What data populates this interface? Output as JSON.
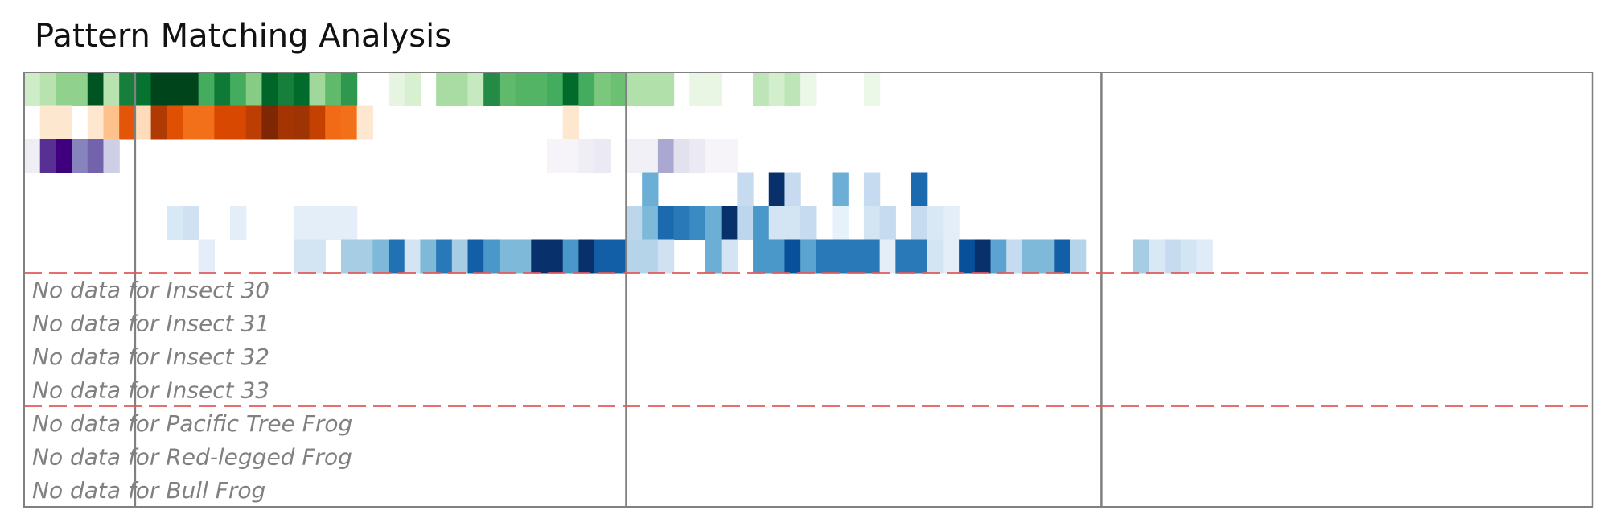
{
  "chart_data": {
    "type": "heatmap",
    "title": "Pattern Matching Analysis",
    "grid": false,
    "x": {
      "min": 0,
      "max": 99,
      "bins": 99
    },
    "colormaps": [
      "Greens",
      "Oranges",
      "Purples",
      "Blues"
    ],
    "section_markers": [
      7,
      38,
      68,
      99
    ],
    "group_separators": [
      6,
      10
    ],
    "rows": [
      {
        "cmap": "Greens",
        "cells": [
          [
            0,
            0.22
          ],
          [
            1,
            0.3
          ],
          [
            2,
            0.42
          ],
          [
            3,
            0.42
          ],
          [
            4,
            0.95
          ],
          [
            5,
            0.3
          ],
          [
            6,
            0.8
          ],
          [
            7,
            0.85
          ],
          [
            8,
            1.0
          ],
          [
            9,
            1.0
          ],
          [
            10,
            1.0
          ],
          [
            11,
            0.62
          ],
          [
            12,
            0.82
          ],
          [
            13,
            0.62
          ],
          [
            14,
            0.45
          ],
          [
            15,
            0.9
          ],
          [
            16,
            0.8
          ],
          [
            17,
            0.88
          ],
          [
            18,
            0.38
          ],
          [
            19,
            0.55
          ],
          [
            20,
            0.7
          ],
          [
            23,
            0.12
          ],
          [
            24,
            0.18
          ],
          [
            26,
            0.35
          ],
          [
            27,
            0.35
          ],
          [
            28,
            0.25
          ],
          [
            29,
            0.75
          ],
          [
            30,
            0.55
          ],
          [
            31,
            0.58
          ],
          [
            32,
            0.58
          ],
          [
            33,
            0.62
          ],
          [
            34,
            0.88
          ],
          [
            35,
            0.62
          ],
          [
            36,
            0.48
          ],
          [
            37,
            0.52
          ],
          [
            38,
            0.32
          ],
          [
            39,
            0.32
          ],
          [
            40,
            0.32
          ],
          [
            42,
            0.1
          ],
          [
            43,
            0.1
          ],
          [
            46,
            0.28
          ],
          [
            47,
            0.2
          ],
          [
            48,
            0.28
          ],
          [
            49,
            0.08
          ],
          [
            53,
            0.08
          ]
        ]
      },
      {
        "cmap": "Oranges",
        "cells": [
          [
            1,
            0.12
          ],
          [
            2,
            0.12
          ],
          [
            4,
            0.12
          ],
          [
            5,
            0.3
          ],
          [
            6,
            0.7
          ],
          [
            7,
            0.18
          ],
          [
            8,
            0.85
          ],
          [
            9,
            0.72
          ],
          [
            10,
            0.6
          ],
          [
            11,
            0.6
          ],
          [
            12,
            0.75
          ],
          [
            13,
            0.75
          ],
          [
            14,
            0.82
          ],
          [
            15,
            1.0
          ],
          [
            16,
            0.88
          ],
          [
            17,
            0.9
          ],
          [
            18,
            0.8
          ],
          [
            19,
            0.62
          ],
          [
            20,
            0.6
          ],
          [
            21,
            0.12
          ],
          [
            34,
            0.12
          ]
        ]
      },
      {
        "cmap": "Purples",
        "cells": [
          [
            0,
            0.12
          ],
          [
            1,
            0.85
          ],
          [
            2,
            1.0
          ],
          [
            3,
            0.6
          ],
          [
            4,
            0.7
          ],
          [
            5,
            0.3
          ],
          [
            33,
            0.06
          ],
          [
            34,
            0.06
          ],
          [
            35,
            0.12
          ],
          [
            36,
            0.15
          ],
          [
            38,
            0.1
          ],
          [
            39,
            0.1
          ],
          [
            40,
            0.45
          ],
          [
            41,
            0.2
          ],
          [
            42,
            0.15
          ],
          [
            43,
            0.06
          ],
          [
            44,
            0.06
          ]
        ]
      },
      {
        "cmap": "Blues",
        "cells": [
          [
            39,
            0.5
          ],
          [
            45,
            0.25
          ],
          [
            47,
            1.0
          ],
          [
            48,
            0.25
          ],
          [
            51,
            0.5
          ],
          [
            53,
            0.25
          ],
          [
            56,
            0.78
          ]
        ]
      },
      {
        "cmap": "Blues",
        "cells": [
          [
            9,
            0.15
          ],
          [
            10,
            0.2
          ],
          [
            13,
            0.1
          ],
          [
            17,
            0.1
          ],
          [
            18,
            0.1
          ],
          [
            19,
            0.1
          ],
          [
            20,
            0.1
          ],
          [
            38,
            0.28
          ],
          [
            39,
            0.45
          ],
          [
            40,
            0.78
          ],
          [
            41,
            0.72
          ],
          [
            42,
            0.65
          ],
          [
            43,
            0.5
          ],
          [
            44,
            1.0
          ],
          [
            45,
            0.28
          ],
          [
            46,
            0.6
          ],
          [
            47,
            0.18
          ],
          [
            48,
            0.18
          ],
          [
            49,
            0.25
          ],
          [
            51,
            0.08
          ],
          [
            53,
            0.18
          ],
          [
            54,
            0.25
          ],
          [
            56,
            0.25
          ],
          [
            57,
            0.15
          ],
          [
            58,
            0.1
          ]
        ]
      },
      {
        "cmap": "Blues",
        "cells": [
          [
            11,
            0.1
          ],
          [
            17,
            0.18
          ],
          [
            18,
            0.18
          ],
          [
            20,
            0.35
          ],
          [
            21,
            0.35
          ],
          [
            22,
            0.45
          ],
          [
            23,
            0.75
          ],
          [
            24,
            0.18
          ],
          [
            25,
            0.45
          ],
          [
            26,
            0.72
          ],
          [
            27,
            0.35
          ],
          [
            28,
            0.82
          ],
          [
            29,
            0.6
          ],
          [
            30,
            0.45
          ],
          [
            31,
            0.45
          ],
          [
            32,
            1.0
          ],
          [
            33,
            1.0
          ],
          [
            34,
            0.6
          ],
          [
            35,
            1.0
          ],
          [
            36,
            0.82
          ],
          [
            37,
            0.82
          ],
          [
            38,
            0.3
          ],
          [
            39,
            0.3
          ],
          [
            40,
            0.2
          ],
          [
            43,
            0.5
          ],
          [
            44,
            0.18
          ],
          [
            46,
            0.6
          ],
          [
            47,
            0.6
          ],
          [
            48,
            0.88
          ],
          [
            49,
            0.55
          ],
          [
            50,
            0.72
          ],
          [
            51,
            0.72
          ],
          [
            52,
            0.72
          ],
          [
            53,
            0.72
          ],
          [
            54,
            0.1
          ],
          [
            55,
            0.72
          ],
          [
            56,
            0.72
          ],
          [
            57,
            0.18
          ],
          [
            58,
            0.1
          ],
          [
            59,
            0.88
          ],
          [
            60,
            1.0
          ],
          [
            61,
            0.55
          ],
          [
            62,
            0.25
          ],
          [
            63,
            0.45
          ],
          [
            64,
            0.45
          ],
          [
            65,
            0.82
          ],
          [
            66,
            0.3
          ],
          [
            70,
            0.35
          ],
          [
            71,
            0.15
          ],
          [
            72,
            0.25
          ],
          [
            73,
            0.18
          ],
          [
            74,
            0.12
          ]
        ]
      }
    ],
    "empty_rows": [
      "No data for Insect 30",
      "No data for Insect 31",
      "No data for Insect 32",
      "No data for Insect 33",
      "No data for Pacific Tree Frog",
      "No data for Red-legged Frog",
      "No data for Bull Frog"
    ],
    "colors": {
      "marker": "#808080",
      "separator": "#e05a5a",
      "message": "#808080",
      "frame": "#808080"
    }
  }
}
